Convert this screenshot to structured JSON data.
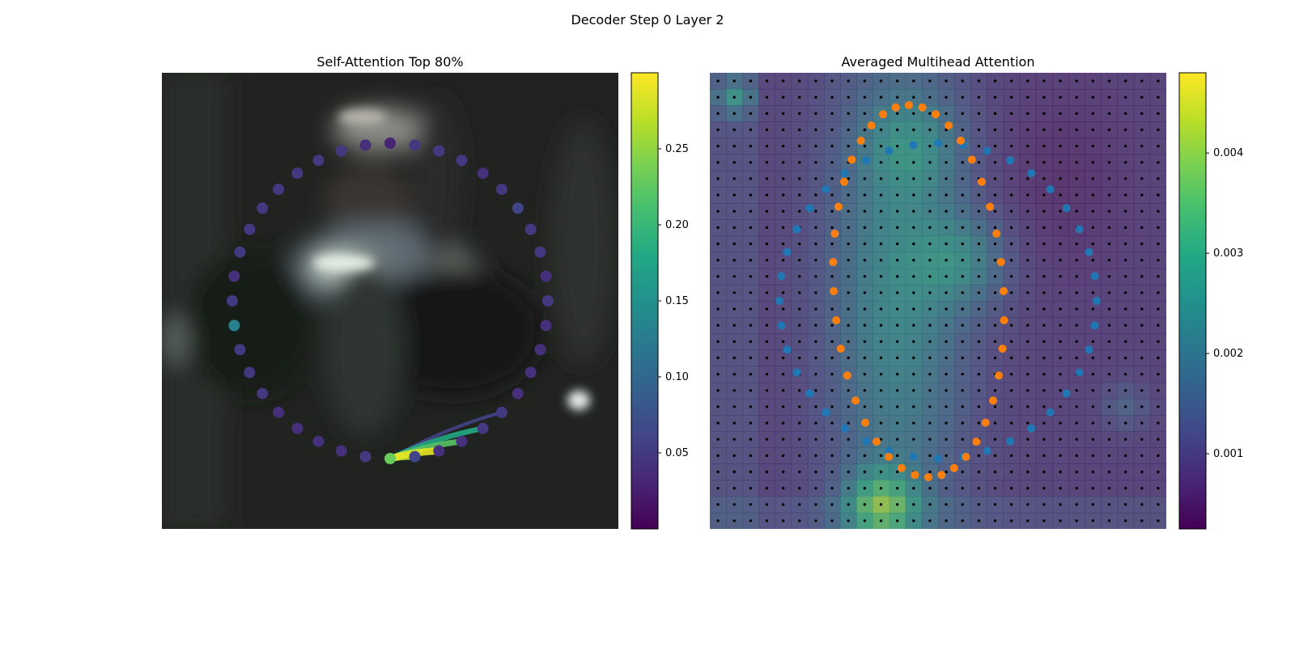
{
  "figure": {
    "title": "Decoder Step 0 Layer 2"
  },
  "chart_data": [
    {
      "type": "scatter",
      "title": "Self-Attention Top 80%",
      "background": "blurred photo (dark scene, person in center)",
      "colormap": "viridis",
      "colorbar": {
        "min": 0.0,
        "max": 0.3,
        "ticks": [
          0.05,
          0.1,
          0.15,
          0.2,
          0.25
        ]
      },
      "query_index": 0,
      "points_description": "40 points arranged on a circle, colored by attention weight from the query point",
      "attention_values": [
        0.23,
        0.06,
        0.04,
        0.04,
        0.05,
        0.05,
        0.04,
        0.04,
        0.04,
        0.04,
        0.05,
        0.04,
        0.05,
        0.05,
        0.06,
        0.05,
        0.04,
        0.05,
        0.05,
        0.05,
        0.03,
        0.04,
        0.05,
        0.05,
        0.05,
        0.05,
        0.05,
        0.05,
        0.05,
        0.04,
        0.05,
        0.13,
        0.05,
        0.05,
        0.05,
        0.04,
        0.04,
        0.04,
        0.04,
        0.05
      ],
      "top_links": [
        {
          "to": 1,
          "weight": 0.26
        },
        {
          "to": 2,
          "weight": 0.29
        },
        {
          "to": 3,
          "weight": 0.22
        },
        {
          "to": 4,
          "weight": 0.18
        },
        {
          "to": 5,
          "weight": 0.06
        }
      ]
    },
    {
      "type": "heatmap",
      "title": "Averaged Multihead Attention",
      "grid": {
        "rows": 28,
        "cols": 28
      },
      "colormap": "viridis",
      "colorbar": {
        "min": 0.00025,
        "max": 0.0048,
        "ticks": [
          0.001,
          0.002,
          0.003,
          0.004
        ]
      },
      "overlay_series": [
        {
          "color": "#1f77b4",
          "shape": "large circle of 40 points"
        },
        {
          "color": "#ff7f0e",
          "shape": "narrow vertical ellipse of 40 points"
        },
        {
          "color": "#000000",
          "shape": "28 x 28 grid of reference points"
        }
      ]
    }
  ]
}
